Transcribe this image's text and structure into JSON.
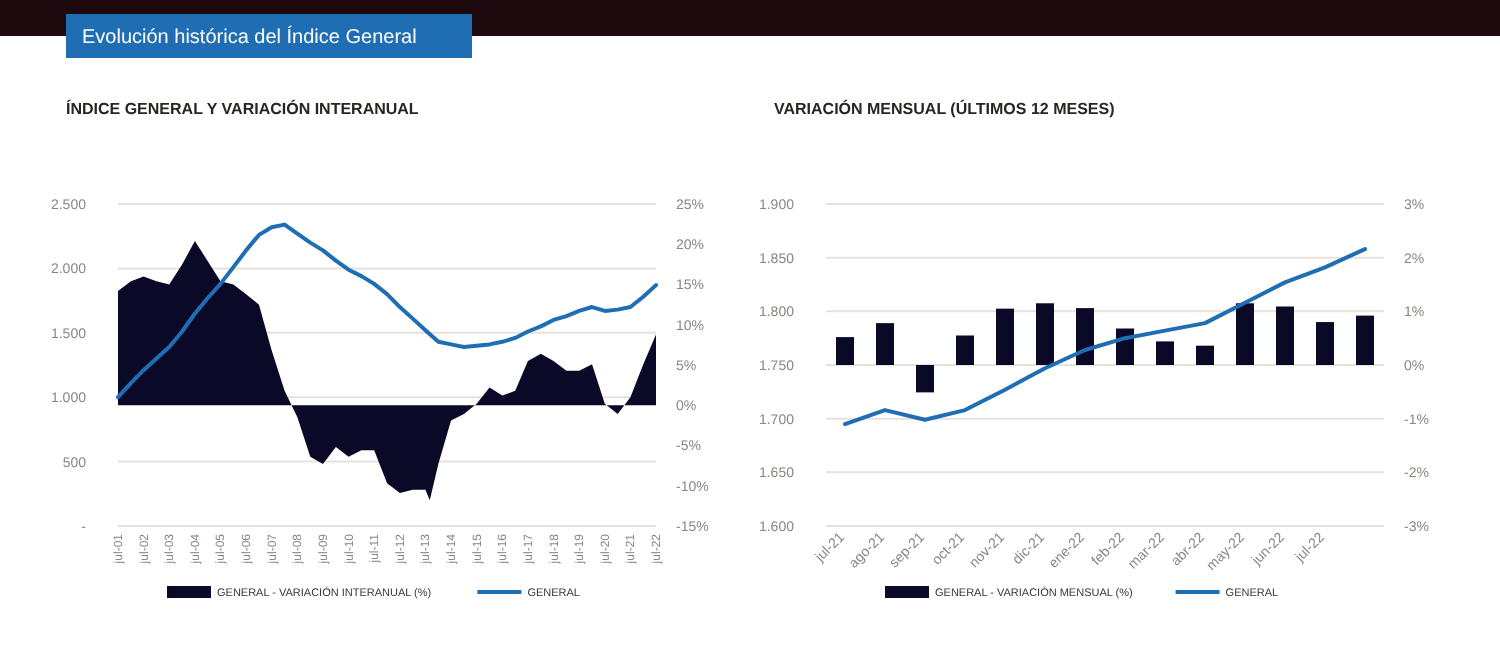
{
  "chart_data": [
    {
      "type": "line",
      "title": "ÍNDICE GENERAL Y VARIACIÓN INTERANUAL",
      "annotations": [
        "Evolución histórica del Índice General"
      ],
      "grid": "y",
      "legend": "bottom",
      "xlim": [
        "2001-07",
        "2022-07"
      ],
      "xticks": [
        {
          "value": "2001-07",
          "label": "jul-01"
        },
        {
          "value": "2002-07",
          "label": "jul-02"
        },
        {
          "value": "2003-07",
          "label": "jul-03"
        },
        {
          "value": "2004-07",
          "label": "jul-04"
        },
        {
          "value": "2005-07",
          "label": "jul-05"
        },
        {
          "value": "2006-07",
          "label": "jul-06"
        },
        {
          "value": "2007-07",
          "label": "jul-07"
        },
        {
          "value": "2008-07",
          "label": "jul-08"
        },
        {
          "value": "2009-07",
          "label": "jul-09"
        },
        {
          "value": "2010-07",
          "label": "jul-10"
        },
        {
          "value": "2011-07",
          "label": "jul-11"
        },
        {
          "value": "2012-07",
          "label": "jul-12"
        },
        {
          "value": "2013-07",
          "label": "jul-13"
        },
        {
          "value": "2014-07",
          "label": "jul-14"
        },
        {
          "value": "2015-07",
          "label": "jul-15"
        },
        {
          "value": "2016-07",
          "label": "jul-16"
        },
        {
          "value": "2017-07",
          "label": "jul-17"
        },
        {
          "value": "2018-07",
          "label": "jul-18"
        },
        {
          "value": "2019-07",
          "label": "jul-19"
        },
        {
          "value": "2020-07",
          "label": "jul-20"
        },
        {
          "value": "2021-07",
          "label": "jul-21"
        },
        {
          "value": "2022-07",
          "label": "jul-22"
        }
      ],
      "ylim": [
        0,
        2500
      ],
      "yticks": [
        {
          "value": 0,
          "label": "-"
        },
        {
          "value": 500,
          "label": "500"
        },
        {
          "value": 1000,
          "label": "1.000"
        },
        {
          "value": 1500,
          "label": "1.500"
        },
        {
          "value": 2000,
          "label": "2.000"
        },
        {
          "value": 2500,
          "label": "2.500"
        }
      ],
      "y2lim": [
        -15,
        25
      ],
      "y2ticks": [
        {
          "value": -15,
          "label": "-15%"
        },
        {
          "value": -10,
          "label": "-10%"
        },
        {
          "value": -5,
          "label": "-5%"
        },
        {
          "value": 0,
          "label": "0%"
        },
        {
          "value": 5,
          "label": "5%"
        },
        {
          "value": 10,
          "label": "10%"
        },
        {
          "value": 15,
          "label": "15%"
        },
        {
          "value": 20,
          "label": "20%"
        },
        {
          "value": 25,
          "label": "25%"
        }
      ],
      "series": [
        {
          "name": "GENERAL - VARIACIÓN INTERANUAL (%)",
          "type": "area",
          "axis": "y2",
          "color": "#0a0a28",
          "x": [
            "2001-07",
            "2002-01",
            "2002-07",
            "2003-01",
            "2003-07",
            "2004-01",
            "2004-07",
            "2005-01",
            "2005-07",
            "2006-01",
            "2006-07",
            "2007-01",
            "2007-07",
            "2008-01",
            "2008-07",
            "2009-01",
            "2009-07",
            "2010-01",
            "2010-07",
            "2011-01",
            "2011-07",
            "2012-01",
            "2012-07",
            "2013-01",
            "2013-07",
            "2013-09",
            "2014-01",
            "2014-07",
            "2015-01",
            "2015-07",
            "2016-01",
            "2016-07",
            "2017-01",
            "2017-07",
            "2018-01",
            "2018-07",
            "2019-01",
            "2019-07",
            "2020-01",
            "2020-07",
            "2021-01",
            "2021-07",
            "2022-01",
            "2022-07"
          ],
          "values": [
            14.2,
            15.4,
            16.0,
            15.4,
            15.0,
            17.5,
            20.4,
            17.9,
            15.4,
            15.0,
            13.8,
            12.5,
            6.8,
            1.8,
            -1.5,
            -6.4,
            -7.3,
            -5.2,
            -6.4,
            -5.6,
            -5.6,
            -9.7,
            -10.9,
            -10.5,
            -10.5,
            -11.8,
            -7.3,
            -1.9,
            -1.1,
            0.2,
            2.2,
            1.2,
            1.8,
            5.5,
            6.4,
            5.5,
            4.3,
            4.3,
            5.1,
            0.2,
            -1.1,
            1.0,
            5.1,
            8.8
          ]
        },
        {
          "name": "GENERAL",
          "axis": "y",
          "color": "#1f6eb4",
          "x": [
            "2001-07",
            "2002-01",
            "2002-07",
            "2003-01",
            "2003-07",
            "2004-01",
            "2004-07",
            "2005-01",
            "2005-07",
            "2006-01",
            "2006-07",
            "2007-01",
            "2007-07",
            "2008-01",
            "2008-07",
            "2009-01",
            "2009-07",
            "2010-01",
            "2010-07",
            "2011-01",
            "2011-07",
            "2012-01",
            "2012-07",
            "2013-01",
            "2013-07",
            "2014-01",
            "2014-07",
            "2015-01",
            "2015-07",
            "2016-01",
            "2016-07",
            "2017-01",
            "2017-07",
            "2018-01",
            "2018-07",
            "2019-01",
            "2019-07",
            "2020-01",
            "2020-07",
            "2021-01",
            "2021-07",
            "2022-01",
            "2022-07"
          ],
          "values": [
            1000,
            1110,
            1210,
            1300,
            1390,
            1510,
            1650,
            1770,
            1880,
            2010,
            2140,
            2260,
            2320,
            2340,
            2270,
            2200,
            2140,
            2060,
            1990,
            1940,
            1880,
            1800,
            1700,
            1610,
            1520,
            1430,
            1410,
            1390,
            1400,
            1410,
            1430,
            1460,
            1510,
            1550,
            1600,
            1630,
            1670,
            1700,
            1670,
            1680,
            1700,
            1780,
            1870
          ]
        }
      ]
    },
    {
      "type": "bar",
      "title": "VARIACIÓN MENSUAL (ÚLTIMOS 12 MESES)",
      "grid": "y",
      "legend": "bottom",
      "categories": [
        "jul-21",
        "ago-21",
        "sep-21",
        "oct-21",
        "nov-21",
        "dic-21",
        "ene-22",
        "feb-22",
        "mar-22",
        "abr-22",
        "may-22",
        "jun-22",
        "jul-22",
        null
      ],
      "ylim": [
        1600,
        1900
      ],
      "yticks": [
        {
          "value": 1600,
          "label": "1.600"
        },
        {
          "value": 1650,
          "label": "1.650"
        },
        {
          "value": 1700,
          "label": "1.700"
        },
        {
          "value": 1750,
          "label": "1.750"
        },
        {
          "value": 1800,
          "label": "1.800"
        },
        {
          "value": 1850,
          "label": "1.850"
        },
        {
          "value": 1900,
          "label": "1.900"
        }
      ],
      "y2lim": [
        -3,
        3
      ],
      "y2ticks": [
        {
          "value": -3,
          "label": "-3%"
        },
        {
          "value": -2,
          "label": "-2%"
        },
        {
          "value": -1,
          "label": "-1%"
        },
        {
          "value": 0,
          "label": "0%"
        },
        {
          "value": 1,
          "label": "1%"
        },
        {
          "value": 2,
          "label": "2%"
        },
        {
          "value": 3,
          "label": "3%"
        }
      ],
      "series": [
        {
          "name": "GENERAL - VARIACIÓN MENSUAL (%)",
          "axis": "y2",
          "color": "#0a0a28",
          "values": [
            0.52,
            0.78,
            -0.51,
            0.55,
            1.05,
            1.15,
            1.06,
            0.68,
            0.44,
            0.36,
            1.15,
            1.09,
            0.8,
            0.92
          ]
        },
        {
          "name": "GENERAL",
          "type": "line",
          "axis": "y",
          "color": "#1f6eb4",
          "values": [
            1695,
            1708,
            1699,
            1708,
            1727,
            1747,
            1764,
            1775,
            1782,
            1789,
            1808,
            1827,
            1841,
            1858
          ]
        }
      ]
    }
  ]
}
